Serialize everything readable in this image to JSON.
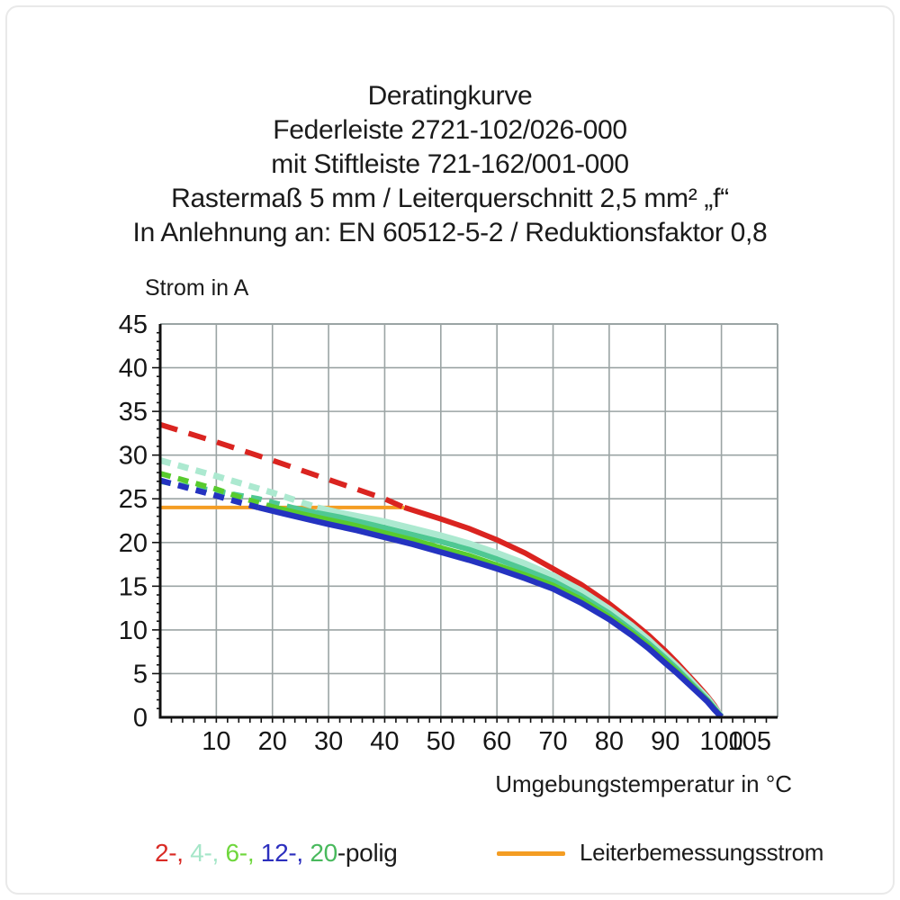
{
  "title": {
    "lines": [
      "Deratingkurve",
      "Federleiste 2721-102/026-000",
      "mit Stiftleiste 721-162/001-000",
      "Rastermaß 5 mm / Leiterquerschnitt 2,5 mm² „f“",
      "In Anlehnung an: EN 60512-5-2 / Reduktionsfaktor 0,8"
    ]
  },
  "legend": {
    "pole_items": [
      {
        "text": "2-,",
        "color": "#d92b25"
      },
      {
        "text": "4-,",
        "color": "#a5e6c8"
      },
      {
        "text": "6-,",
        "color": "#6fd73d"
      },
      {
        "text": "12-,",
        "color": "#2c2fbe"
      },
      {
        "text": "20",
        "color": "#49b95d"
      }
    ],
    "suffix": "-polig",
    "suffix_color": "#1b1b1b"
  },
  "chart_data": {
    "type": "line",
    "title": "Deratingkurve",
    "xlabel": "Umgebungstemperatur in °C",
    "ylabel": "Strom in A",
    "xlim": [
      0,
      110
    ],
    "ylim": [
      0,
      45
    ],
    "x_tick_labels": [
      10,
      20,
      30,
      40,
      50,
      60,
      70,
      80,
      90,
      100,
      105
    ],
    "y_tick_labels": [
      0,
      5,
      10,
      15,
      20,
      25,
      30,
      35,
      40,
      45
    ],
    "x_minor_step": 2,
    "y_minor_step": 1,
    "grid": true,
    "grid_color": "#9ba4a4",
    "axis_color": "#111111",
    "reference_line": {
      "name": "Leiterbemessungsstrom",
      "y": 24,
      "x_start": 0,
      "x_end": 43.5,
      "color": "#f49d23"
    },
    "series": [
      {
        "name": "2-polig",
        "color": "#da2420",
        "dashed_until_x": 43.5,
        "points": [
          [
            0,
            33.5
          ],
          [
            10,
            31.5
          ],
          [
            20,
            29.4
          ],
          [
            30,
            27.2
          ],
          [
            40,
            25.0
          ],
          [
            43.5,
            24.0
          ],
          [
            47,
            23.3
          ],
          [
            50,
            22.7
          ],
          [
            55,
            21.6
          ],
          [
            60,
            20.3
          ],
          [
            65,
            18.8
          ],
          [
            70,
            17.0
          ],
          [
            75,
            15.2
          ],
          [
            80,
            13.0
          ],
          [
            84,
            11.0
          ],
          [
            87,
            9.4
          ],
          [
            90,
            7.6
          ],
          [
            92,
            6.3
          ],
          [
            94,
            4.9
          ],
          [
            96,
            3.5
          ],
          [
            97.5,
            2.4
          ],
          [
            98.7,
            1.4
          ],
          [
            99.5,
            0.6
          ],
          [
            100,
            0.1
          ]
        ]
      },
      {
        "name": "4-polig",
        "color": "#ace9d0",
        "dashed_until_x": 28,
        "points": [
          [
            0,
            29.4
          ],
          [
            10,
            27.6
          ],
          [
            20,
            25.7
          ],
          [
            28,
            24.0
          ],
          [
            32,
            23.4
          ],
          [
            36,
            22.9
          ],
          [
            40,
            22.4
          ],
          [
            45,
            21.6
          ],
          [
            50,
            20.8
          ],
          [
            55,
            19.9
          ],
          [
            60,
            18.8
          ],
          [
            65,
            17.6
          ],
          [
            70,
            16.2
          ],
          [
            75,
            14.5
          ],
          [
            80,
            12.4
          ],
          [
            84,
            10.5
          ],
          [
            87,
            8.9
          ],
          [
            90,
            7.1
          ],
          [
            92,
            5.9
          ],
          [
            94,
            4.6
          ],
          [
            96,
            3.2
          ],
          [
            97.5,
            2.2
          ],
          [
            98.7,
            1.2
          ],
          [
            99.5,
            0.5
          ],
          [
            100,
            0.1
          ]
        ]
      },
      {
        "name": "6-polig",
        "color": "#58cb2e",
        "dashed_until_x": 20.5,
        "points": [
          [
            0,
            27.9
          ],
          [
            10,
            26.1
          ],
          [
            15,
            25.0
          ],
          [
            20.5,
            24.0
          ],
          [
            25,
            23.3
          ],
          [
            30,
            22.6
          ],
          [
            35,
            21.9
          ],
          [
            40,
            21.1
          ],
          [
            45,
            20.3
          ],
          [
            50,
            19.4
          ],
          [
            55,
            18.5
          ],
          [
            60,
            17.4
          ],
          [
            65,
            16.3
          ],
          [
            70,
            15.1
          ],
          [
            75,
            13.5
          ],
          [
            80,
            11.5
          ],
          [
            84,
            9.7
          ],
          [
            87,
            8.2
          ],
          [
            90,
            6.5
          ],
          [
            92,
            5.3
          ],
          [
            94,
            4.1
          ],
          [
            96,
            2.8
          ],
          [
            97.5,
            1.9
          ],
          [
            98.7,
            1.0
          ],
          [
            99.5,
            0.4
          ],
          [
            100,
            0.06
          ]
        ]
      },
      {
        "name": "12-polig",
        "color": "#2433c0",
        "dashed_until_x": 17.5,
        "points": [
          [
            0,
            27.1
          ],
          [
            8,
            25.7
          ],
          [
            13,
            24.8
          ],
          [
            17.5,
            24.0
          ],
          [
            22,
            23.3
          ],
          [
            26,
            22.7
          ],
          [
            30,
            22.1
          ],
          [
            35,
            21.4
          ],
          [
            40,
            20.6
          ],
          [
            45,
            19.8
          ],
          [
            50,
            18.9
          ],
          [
            55,
            18.0
          ],
          [
            60,
            17.0
          ],
          [
            65,
            15.9
          ],
          [
            70,
            14.7
          ],
          [
            75,
            13.1
          ],
          [
            80,
            11.2
          ],
          [
            84,
            9.4
          ],
          [
            87,
            7.9
          ],
          [
            90,
            6.2
          ],
          [
            92,
            5.1
          ],
          [
            94,
            3.9
          ],
          [
            96,
            2.7
          ],
          [
            97.5,
            1.8
          ],
          [
            98.7,
            0.9
          ],
          [
            99.5,
            0.35
          ],
          [
            100,
            0.05
          ]
        ]
      },
      {
        "name": "20-polig",
        "color": "#4fc893",
        "dashed_until_x": 23.5,
        "points": [
          [
            0,
            27.0
          ],
          [
            5,
            26.4
          ],
          [
            10,
            25.9
          ],
          [
            14,
            25.4
          ],
          [
            17.5,
            25.0
          ],
          [
            20,
            24.6
          ],
          [
            23.5,
            24.0
          ],
          [
            28,
            23.4
          ],
          [
            32,
            22.9
          ],
          [
            36,
            22.3
          ],
          [
            40,
            21.7
          ],
          [
            45,
            20.9
          ],
          [
            50,
            20.1
          ],
          [
            55,
            19.2
          ],
          [
            60,
            18.1
          ],
          [
            65,
            16.9
          ],
          [
            70,
            15.6
          ],
          [
            75,
            13.9
          ],
          [
            80,
            11.9
          ],
          [
            84,
            10.0
          ],
          [
            87,
            8.5
          ],
          [
            90,
            6.8
          ],
          [
            92,
            5.6
          ],
          [
            94,
            4.3
          ],
          [
            96,
            3.0
          ],
          [
            97.5,
            2.0
          ],
          [
            98.7,
            1.1
          ],
          [
            99.5,
            0.45
          ],
          [
            100,
            0.08
          ]
        ]
      }
    ]
  }
}
